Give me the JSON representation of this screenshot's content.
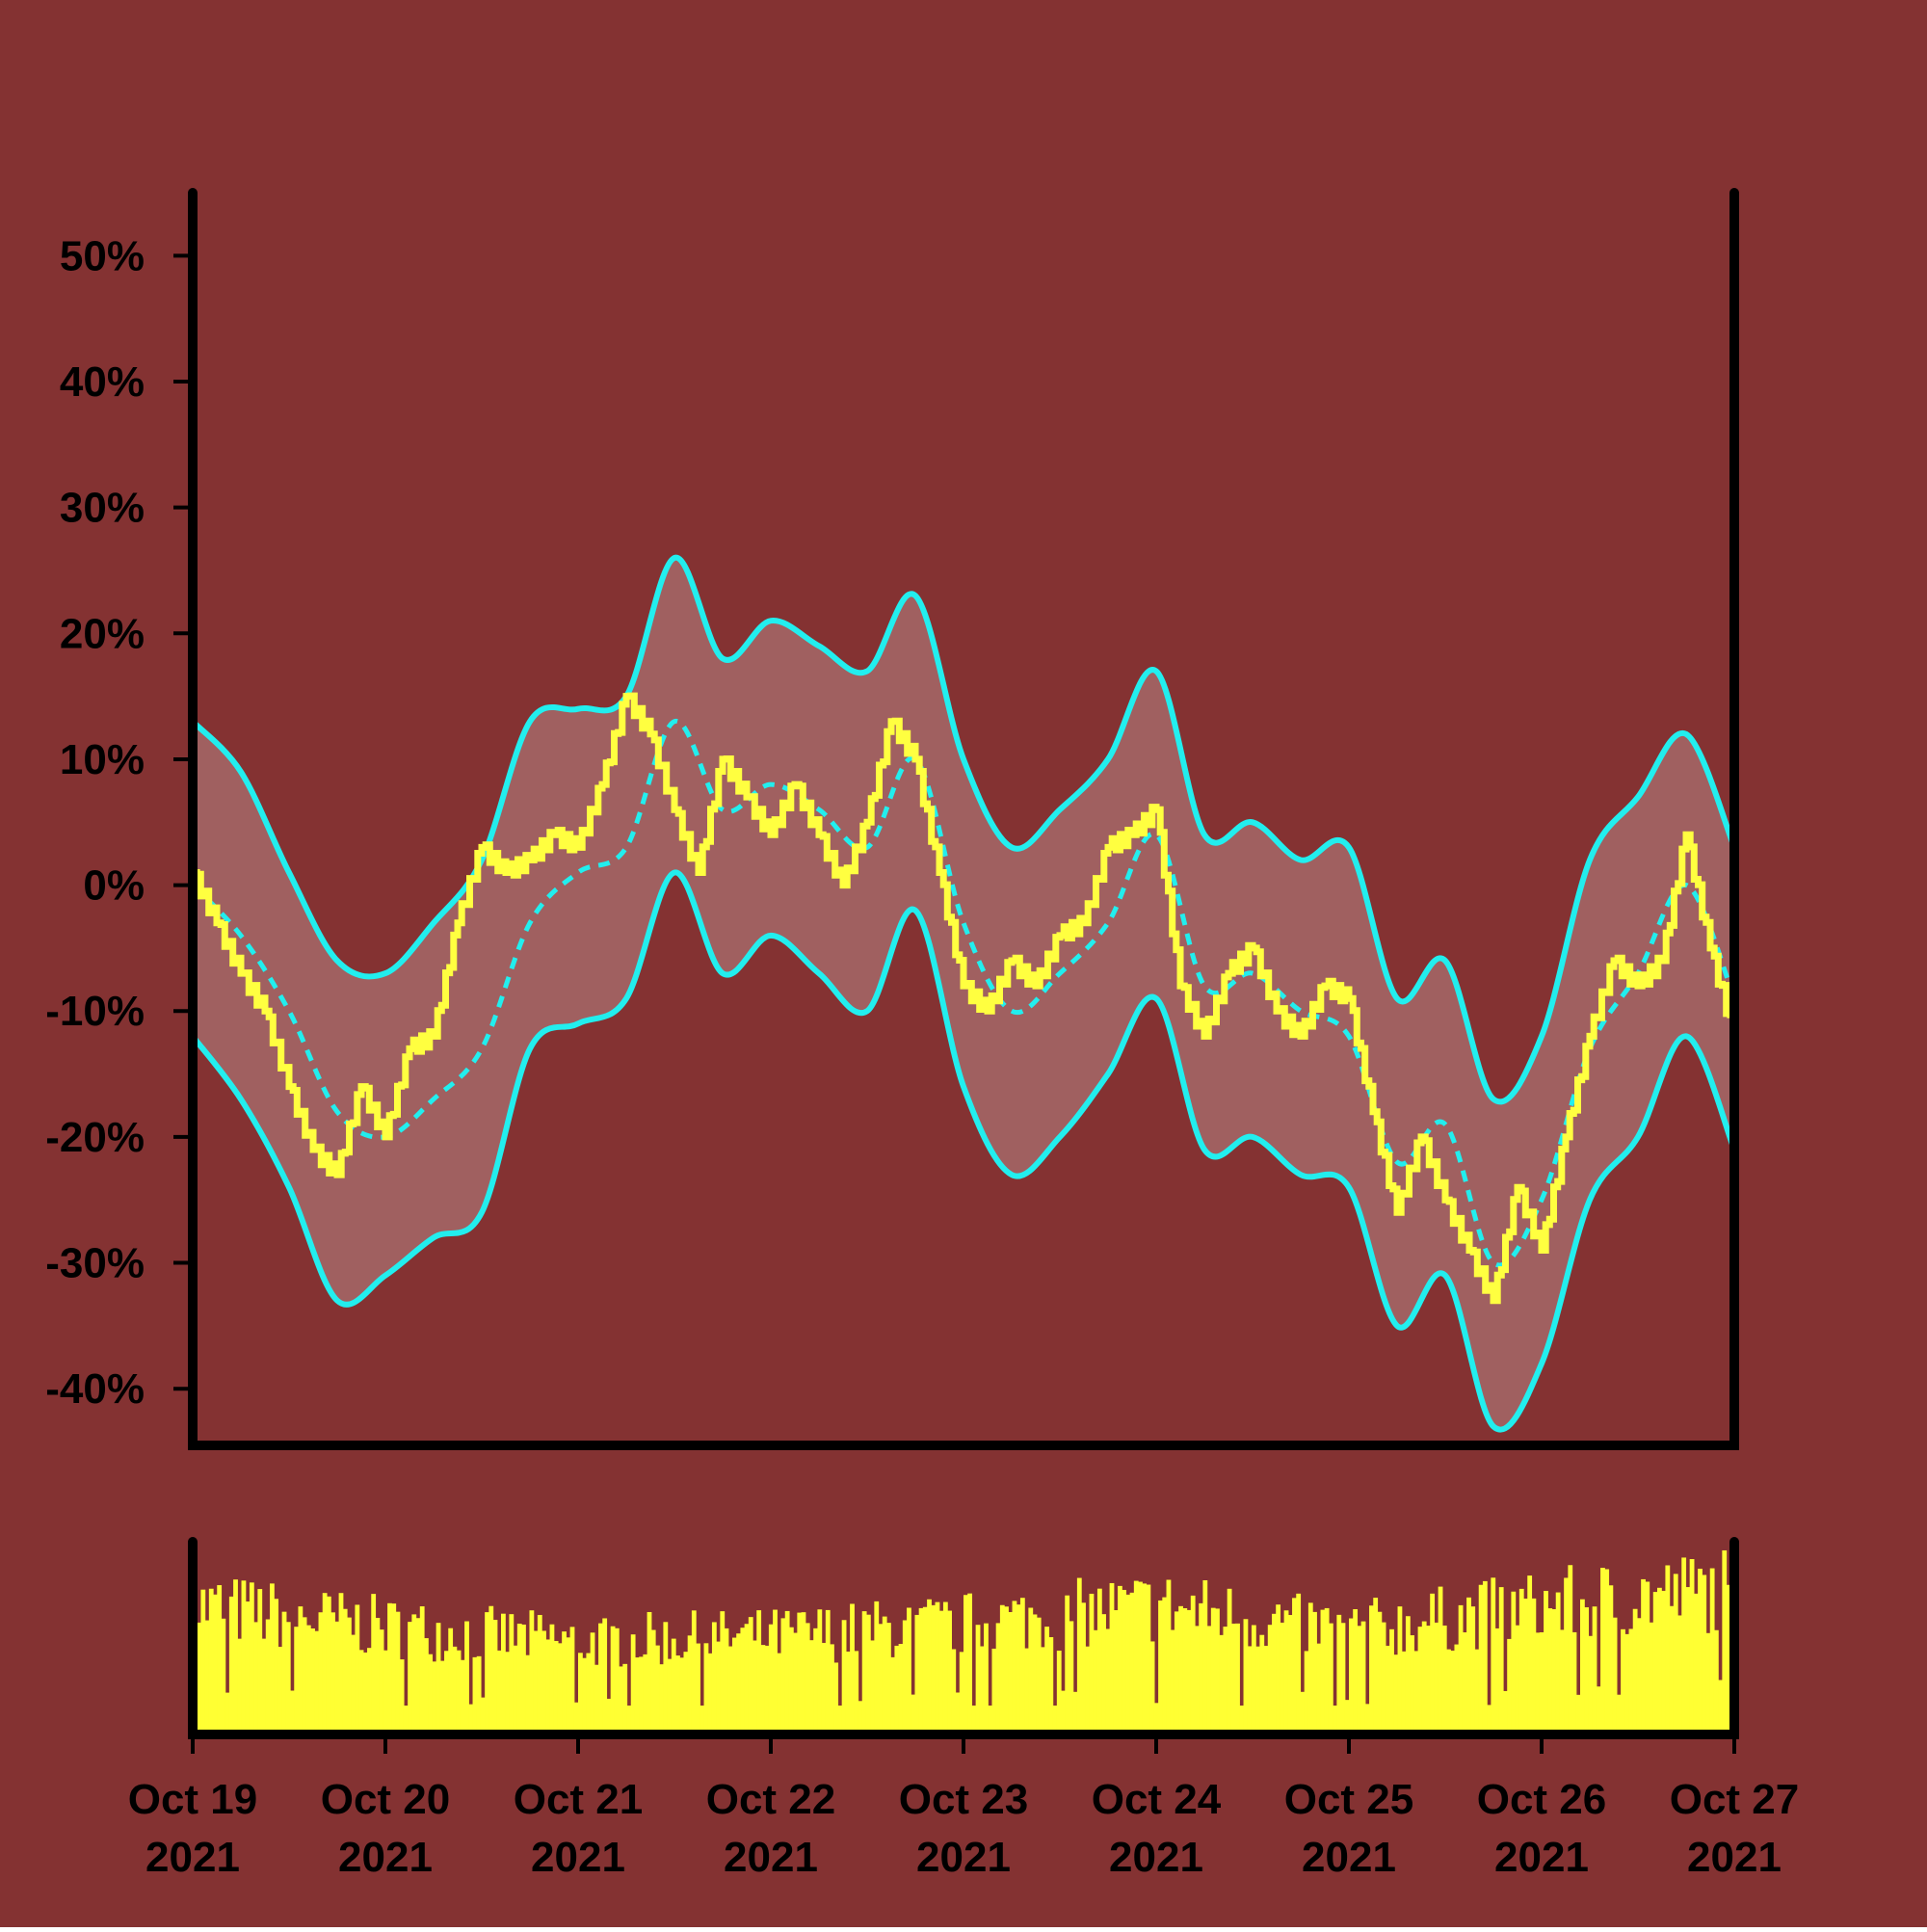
{
  "colors": {
    "background": "#843232",
    "price": "#ffff40",
    "bands": "#22eeee",
    "band_fill": "#a06060",
    "volume": "#ffff33",
    "axis": "#000000"
  },
  "chart_data": {
    "type": "line",
    "subtype": "price with Bollinger-style bands and volume bars",
    "x_axis": {
      "ticks": [
        {
          "date": "2021-10-19",
          "line1": "Oct 19",
          "line2": "2021"
        },
        {
          "date": "2021-10-20",
          "line1": "Oct 20",
          "line2": "2021"
        },
        {
          "date": "2021-10-21",
          "line1": "Oct 21",
          "line2": "2021"
        },
        {
          "date": "2021-10-22",
          "line1": "Oct 22",
          "line2": "2021"
        },
        {
          "date": "2021-10-23",
          "line1": "Oct 23",
          "line2": "2021"
        },
        {
          "date": "2021-10-24",
          "line1": "Oct 24",
          "line2": "2021"
        },
        {
          "date": "2021-10-25",
          "line1": "Oct 25",
          "line2": "2021"
        },
        {
          "date": "2021-10-26",
          "line1": "Oct 26",
          "line2": "2021"
        },
        {
          "date": "2021-10-27",
          "line1": "Oct 27",
          "line2": "2021"
        }
      ],
      "range": [
        "2021-10-19T00:00",
        "2021-10-27T00:00"
      ]
    },
    "y_axis": {
      "ticks": [
        {
          "value": 50,
          "label": "50%"
        },
        {
          "value": 40,
          "label": "40%"
        },
        {
          "value": 30,
          "label": "30%"
        },
        {
          "value": 20,
          "label": "20%"
        },
        {
          "value": 10,
          "label": "10%"
        },
        {
          "value": 0,
          "label": "0%"
        },
        {
          "value": -10,
          "label": "-10%"
        },
        {
          "value": -20,
          "label": "-20%"
        },
        {
          "value": -30,
          "label": "-30%"
        },
        {
          "value": -40,
          "label": "-40%"
        }
      ],
      "range": [
        -44.5,
        55
      ]
    },
    "grid": false,
    "legend": "none",
    "series": [
      {
        "role": "price",
        "style": "solid",
        "points": [
          [
            "2021-10-19T00:00",
            1
          ],
          [
            "2021-10-19T03:00",
            -3
          ],
          [
            "2021-10-19T06:00",
            -7
          ],
          [
            "2021-10-19T09:00",
            -10
          ],
          [
            "2021-10-19T12:00",
            -16
          ],
          [
            "2021-10-19T15:00",
            -21
          ],
          [
            "2021-10-19T18:00",
            -23
          ],
          [
            "2021-10-19T21:00",
            -16
          ],
          [
            "2021-10-20T00:00",
            -20
          ],
          [
            "2021-10-20T03:00",
            -13
          ],
          [
            "2021-10-20T06:00",
            -12
          ],
          [
            "2021-10-20T09:00",
            -3
          ],
          [
            "2021-10-20T12:00",
            3
          ],
          [
            "2021-10-20T15:00",
            1
          ],
          [
            "2021-10-20T18:00",
            2
          ],
          [
            "2021-10-20T21:00",
            4
          ],
          [
            "2021-10-21T00:00",
            3
          ],
          [
            "2021-10-21T03:00",
            8
          ],
          [
            "2021-10-21T06:00",
            15
          ],
          [
            "2021-10-21T09:00",
            12
          ],
          [
            "2021-10-21T12:00",
            6
          ],
          [
            "2021-10-21T15:00",
            1
          ],
          [
            "2021-10-21T18:00",
            10
          ],
          [
            "2021-10-21T21:00",
            7
          ],
          [
            "2021-10-22T00:00",
            4
          ],
          [
            "2021-10-22T03:00",
            8
          ],
          [
            "2021-10-22T06:00",
            4
          ],
          [
            "2021-10-22T09:00",
            0
          ],
          [
            "2021-10-22T12:00",
            5
          ],
          [
            "2021-10-22T15:00",
            13
          ],
          [
            "2021-10-22T18:00",
            10
          ],
          [
            "2021-10-22T21:00",
            1
          ],
          [
            "2021-10-23T00:00",
            -8
          ],
          [
            "2021-10-23T03:00",
            -10
          ],
          [
            "2021-10-23T06:00",
            -6
          ],
          [
            "2021-10-23T09:00",
            -8
          ],
          [
            "2021-10-23T12:00",
            -4
          ],
          [
            "2021-10-23T15:00",
            -3
          ],
          [
            "2021-10-23T18:00",
            3
          ],
          [
            "2021-10-23T21:00",
            4
          ],
          [
            "2021-10-24T00:00",
            6
          ],
          [
            "2021-10-24T03:00",
            -8
          ],
          [
            "2021-10-24T06:00",
            -12
          ],
          [
            "2021-10-24T09:00",
            -7
          ],
          [
            "2021-10-24T12:00",
            -5
          ],
          [
            "2021-10-24T15:00",
            -10
          ],
          [
            "2021-10-24T18:00",
            -12
          ],
          [
            "2021-10-24T21:00",
            -8
          ],
          [
            "2021-10-25T00:00",
            -9
          ],
          [
            "2021-10-25T03:00",
            -18
          ],
          [
            "2021-10-25T06:00",
            -26
          ],
          [
            "2021-10-25T09:00",
            -20
          ],
          [
            "2021-10-25T12:00",
            -25
          ],
          [
            "2021-10-25T15:00",
            -29
          ],
          [
            "2021-10-25T18:00",
            -33
          ],
          [
            "2021-10-25T21:00",
            -24
          ],
          [
            "2021-10-26T00:00",
            -29
          ],
          [
            "2021-10-26T03:00",
            -20
          ],
          [
            "2021-10-26T06:00",
            -12
          ],
          [
            "2021-10-26T09:00",
            -6
          ],
          [
            "2021-10-26T12:00",
            -8
          ],
          [
            "2021-10-26T15:00",
            -6
          ],
          [
            "2021-10-26T18:00",
            4
          ],
          [
            "2021-10-26T21:00",
            -5
          ],
          [
            "2021-10-27T00:00",
            -12
          ]
        ]
      },
      {
        "role": "moving_average",
        "style": "dashed",
        "points": [
          [
            "2021-10-19T00:00",
            0
          ],
          [
            "2021-10-19T06:00",
            -4
          ],
          [
            "2021-10-19T12:00",
            -10
          ],
          [
            "2021-10-19T18:00",
            -18
          ],
          [
            "2021-10-20T00:00",
            -20
          ],
          [
            "2021-10-20T06:00",
            -17
          ],
          [
            "2021-10-20T12:00",
            -13
          ],
          [
            "2021-10-20T18:00",
            -3
          ],
          [
            "2021-10-21T00:00",
            1
          ],
          [
            "2021-10-21T06:00",
            3
          ],
          [
            "2021-10-21T12:00",
            13
          ],
          [
            "2021-10-21T18:00",
            6
          ],
          [
            "2021-10-22T00:00",
            8
          ],
          [
            "2021-10-22T06:00",
            6
          ],
          [
            "2021-10-22T12:00",
            3
          ],
          [
            "2021-10-22T18:00",
            10
          ],
          [
            "2021-10-23T00:00",
            -3
          ],
          [
            "2021-10-23T06:00",
            -10
          ],
          [
            "2021-10-23T12:00",
            -7
          ],
          [
            "2021-10-23T18:00",
            -3
          ],
          [
            "2021-10-24T00:00",
            4
          ],
          [
            "2021-10-24T06:00",
            -8
          ],
          [
            "2021-10-24T12:00",
            -7
          ],
          [
            "2021-10-24T18:00",
            -10
          ],
          [
            "2021-10-25T00:00",
            -12
          ],
          [
            "2021-10-25T06:00",
            -22
          ],
          [
            "2021-10-25T12:00",
            -19
          ],
          [
            "2021-10-25T18:00",
            -30
          ],
          [
            "2021-10-26T00:00",
            -25
          ],
          [
            "2021-10-26T06:00",
            -13
          ],
          [
            "2021-10-26T12:00",
            -7
          ],
          [
            "2021-10-26T18:00",
            0
          ],
          [
            "2021-10-27T00:00",
            -9
          ]
        ]
      },
      {
        "role": "upper_band",
        "style": "solid",
        "points": [
          [
            "2021-10-19T00:00",
            13
          ],
          [
            "2021-10-19T06:00",
            9
          ],
          [
            "2021-10-19T12:00",
            1
          ],
          [
            "2021-10-19T18:00",
            -6
          ],
          [
            "2021-10-20T00:00",
            -7
          ],
          [
            "2021-10-20T06:00",
            -3
          ],
          [
            "2021-10-20T12:00",
            2
          ],
          [
            "2021-10-20T18:00",
            13
          ],
          [
            "2021-10-21T00:00",
            14
          ],
          [
            "2021-10-21T06:00",
            15
          ],
          [
            "2021-10-21T12:00",
            26
          ],
          [
            "2021-10-21T18:00",
            18
          ],
          [
            "2021-10-22T00:00",
            21
          ],
          [
            "2021-10-22T06:00",
            19
          ],
          [
            "2021-10-22T12:00",
            17
          ],
          [
            "2021-10-22T18:00",
            23
          ],
          [
            "2021-10-23T00:00",
            10
          ],
          [
            "2021-10-23T06:00",
            3
          ],
          [
            "2021-10-23T12:00",
            6
          ],
          [
            "2021-10-23T18:00",
            10
          ],
          [
            "2021-10-24T00:00",
            17
          ],
          [
            "2021-10-24T06:00",
            4
          ],
          [
            "2021-10-24T12:00",
            5
          ],
          [
            "2021-10-24T18:00",
            2
          ],
          [
            "2021-10-25T00:00",
            3
          ],
          [
            "2021-10-25T06:00",
            -9
          ],
          [
            "2021-10-25T12:00",
            -6
          ],
          [
            "2021-10-25T18:00",
            -17
          ],
          [
            "2021-10-26T00:00",
            -12
          ],
          [
            "2021-10-26T06:00",
            2
          ],
          [
            "2021-10-26T12:00",
            7
          ],
          [
            "2021-10-26T18:00",
            12
          ],
          [
            "2021-10-27T00:00",
            3
          ]
        ]
      },
      {
        "role": "lower_band",
        "style": "solid",
        "points": [
          [
            "2021-10-19T00:00",
            -12
          ],
          [
            "2021-10-19T06:00",
            -17
          ],
          [
            "2021-10-19T12:00",
            -24
          ],
          [
            "2021-10-19T18:00",
            -33
          ],
          [
            "2021-10-20T00:00",
            -31
          ],
          [
            "2021-10-20T06:00",
            -28
          ],
          [
            "2021-10-20T12:00",
            -26
          ],
          [
            "2021-10-20T18:00",
            -13
          ],
          [
            "2021-10-21T00:00",
            -11
          ],
          [
            "2021-10-21T06:00",
            -9
          ],
          [
            "2021-10-21T12:00",
            1
          ],
          [
            "2021-10-21T18:00",
            -7
          ],
          [
            "2021-10-22T00:00",
            -4
          ],
          [
            "2021-10-22T06:00",
            -7
          ],
          [
            "2021-10-22T12:00",
            -10
          ],
          [
            "2021-10-22T18:00",
            -2
          ],
          [
            "2021-10-23T00:00",
            -16
          ],
          [
            "2021-10-23T06:00",
            -23
          ],
          [
            "2021-10-23T12:00",
            -20
          ],
          [
            "2021-10-23T18:00",
            -15
          ],
          [
            "2021-10-24T00:00",
            -9
          ],
          [
            "2021-10-24T06:00",
            -21
          ],
          [
            "2021-10-24T12:00",
            -20
          ],
          [
            "2021-10-24T18:00",
            -23
          ],
          [
            "2021-10-25T00:00",
            -24
          ],
          [
            "2021-10-25T06:00",
            -35
          ],
          [
            "2021-10-25T12:00",
            -31
          ],
          [
            "2021-10-25T18:00",
            -43
          ],
          [
            "2021-10-26T00:00",
            -38
          ],
          [
            "2021-10-26T06:00",
            -25
          ],
          [
            "2021-10-26T12:00",
            -20
          ],
          [
            "2021-10-26T18:00",
            -12
          ],
          [
            "2021-10-27T00:00",
            -21
          ]
        ]
      }
    ],
    "volume": {
      "type": "bar",
      "unlabeled_axis": true,
      "daily_relative_levels": [
        {
          "date": "2021-10-19",
          "level": 0.72
        },
        {
          "date": "2021-10-20",
          "level": 0.6
        },
        {
          "date": "2021-10-21",
          "level": 0.52
        },
        {
          "date": "2021-10-22",
          "level": 0.55
        },
        {
          "date": "2021-10-23",
          "level": 0.62
        },
        {
          "date": "2021-10-24",
          "level": 0.72
        },
        {
          "date": "2021-10-25",
          "level": 0.58
        },
        {
          "date": "2021-10-26",
          "level": 0.72
        },
        {
          "date": "2021-10-27",
          "level": 0.82
        }
      ]
    }
  }
}
